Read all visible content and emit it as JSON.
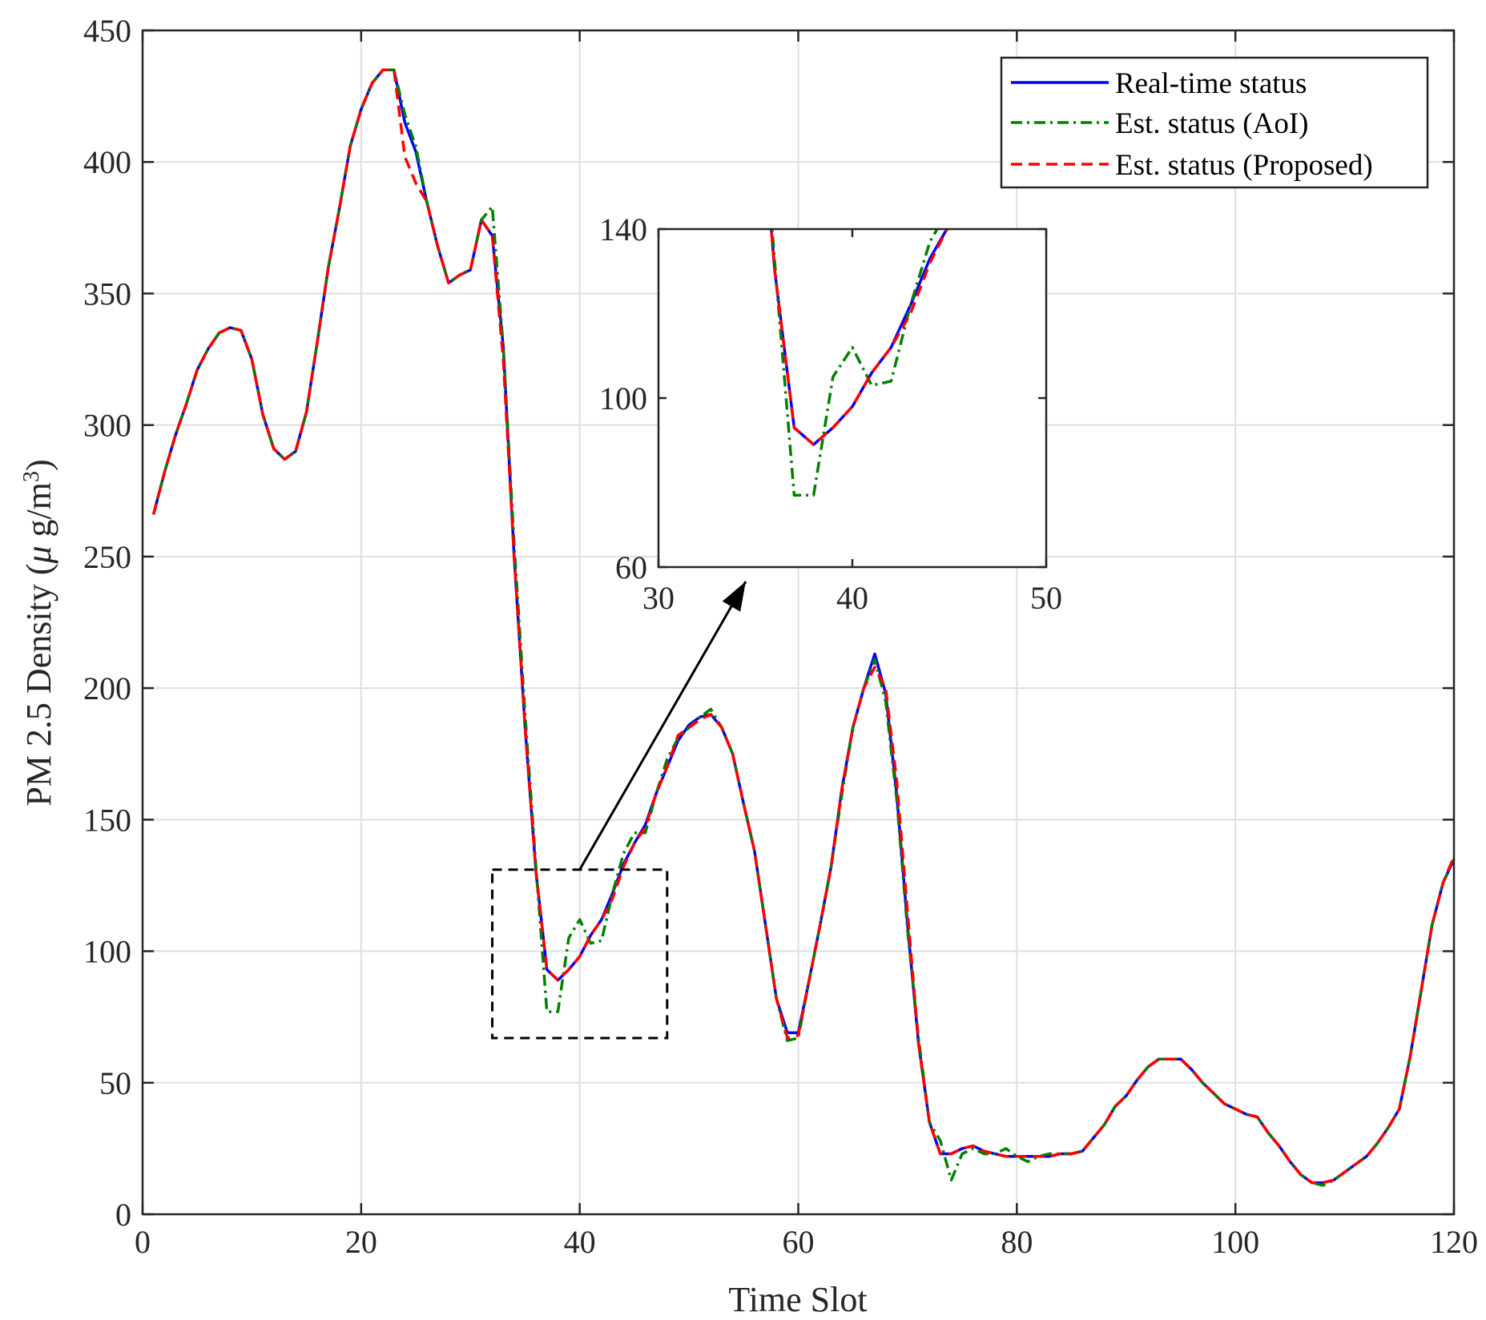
{
  "chart_data": {
    "type": "line",
    "xlabel": "Time Slot",
    "ylabel_text": "PM 2.5 Density (",
    "ylabel_mu": "μ",
    "ylabel_unit": " g/m",
    "ylabel_sup": "3",
    "ylabel_close": ")",
    "xlim": [
      0,
      120
    ],
    "ylim": [
      0,
      450
    ],
    "xticks": [
      0,
      20,
      40,
      60,
      80,
      100,
      120
    ],
    "yticks": [
      0,
      50,
      100,
      150,
      200,
      250,
      300,
      350,
      400,
      450
    ],
    "grid": true,
    "legend_position": "top-right",
    "series": [
      {
        "name": "Real-time status",
        "color": "#0000ff",
        "style": "solid",
        "x": [
          1,
          2,
          3,
          4,
          5,
          6,
          7,
          8,
          9,
          10,
          11,
          12,
          13,
          14,
          15,
          16,
          17,
          18,
          19,
          20,
          21,
          22,
          23,
          24,
          25,
          26,
          27,
          28,
          29,
          30,
          31,
          32,
          33,
          34,
          35,
          36,
          37,
          38,
          39,
          40,
          41,
          42,
          43,
          44,
          45,
          46,
          47,
          48,
          49,
          50,
          51,
          52,
          53,
          54,
          55,
          56,
          57,
          58,
          59,
          60,
          61,
          62,
          63,
          64,
          65,
          66,
          67,
          68,
          69,
          70,
          71,
          72,
          73,
          74,
          75,
          76,
          77,
          78,
          79,
          80,
          81,
          82,
          83,
          84,
          85,
          86,
          87,
          88,
          89,
          90,
          91,
          92,
          93,
          94,
          95,
          96,
          97,
          98,
          99,
          100,
          101,
          102,
          103,
          104,
          105,
          106,
          107,
          108,
          109,
          110,
          111,
          112,
          113,
          114,
          115,
          116,
          117,
          118,
          119,
          120
        ],
        "y": [
          266,
          282,
          296,
          308,
          321,
          329,
          335,
          337,
          336,
          325,
          304,
          291,
          287,
          290,
          305,
          332,
          360,
          382,
          406,
          420,
          430,
          435,
          435,
          415,
          404,
          385,
          368,
          354,
          357,
          359,
          378,
          372,
          330,
          250,
          185,
          130,
          93,
          89,
          93,
          98,
          106,
          112,
          122,
          133,
          141,
          148,
          160,
          170,
          180,
          186,
          189,
          190,
          185,
          175,
          156,
          138,
          110,
          82,
          69,
          69,
          89,
          110,
          132,
          162,
          185,
          200,
          213,
          198,
          160,
          110,
          65,
          35,
          23,
          23,
          25,
          26,
          24,
          23,
          22,
          22,
          22,
          22,
          22,
          23,
          23,
          24,
          29,
          34,
          41,
          45,
          51,
          56,
          59,
          59,
          59,
          55,
          50,
          46,
          42,
          40,
          38,
          37,
          31,
          26,
          20,
          15,
          12,
          12,
          13,
          16,
          19,
          22,
          27,
          33,
          40,
          60,
          85,
          110,
          126,
          135
        ]
      },
      {
        "name": "Est. status (AoI)",
        "color": "#008000",
        "style": "dashdot",
        "x": [
          1,
          2,
          3,
          4,
          5,
          6,
          7,
          8,
          9,
          10,
          11,
          12,
          13,
          14,
          15,
          16,
          17,
          18,
          19,
          20,
          21,
          22,
          23,
          24,
          25,
          26,
          27,
          28,
          29,
          30,
          31,
          32,
          33,
          34,
          35,
          36,
          37,
          38,
          39,
          40,
          41,
          42,
          43,
          44,
          45,
          46,
          47,
          48,
          49,
          50,
          51,
          52,
          53,
          54,
          55,
          56,
          57,
          58,
          59,
          60,
          61,
          62,
          63,
          64,
          65,
          66,
          67,
          68,
          69,
          70,
          71,
          72,
          73,
          74,
          75,
          76,
          77,
          78,
          79,
          80,
          81,
          82,
          83,
          84,
          85,
          86,
          87,
          88,
          89,
          90,
          91,
          92,
          93,
          94,
          95,
          96,
          97,
          98,
          99,
          100,
          101,
          102,
          103,
          104,
          105,
          106,
          107,
          108,
          109,
          110,
          111,
          112,
          113,
          114,
          115,
          116,
          117,
          118,
          119,
          120
        ],
        "y": [
          266,
          282,
          296,
          308,
          321,
          329,
          335,
          337,
          336,
          325,
          304,
          291,
          287,
          290,
          305,
          332,
          360,
          382,
          406,
          420,
          430,
          435,
          435,
          418,
          406,
          385,
          368,
          354,
          357,
          359,
          378,
          383,
          330,
          255,
          190,
          132,
          77,
          77,
          105,
          112,
          103,
          104,
          122,
          137,
          145,
          145,
          160,
          173,
          181,
          185,
          189,
          192,
          185,
          175,
          156,
          138,
          110,
          82,
          66,
          67,
          89,
          110,
          132,
          160,
          185,
          200,
          211,
          195,
          158,
          108,
          67,
          35,
          28,
          13,
          23,
          25,
          23,
          23,
          25,
          22,
          20,
          22,
          23,
          23,
          23,
          24,
          29,
          34,
          41,
          45,
          51,
          56,
          59,
          59,
          59,
          55,
          50,
          46,
          42,
          40,
          38,
          37,
          31,
          26,
          20,
          15,
          12,
          11,
          13,
          16,
          19,
          22,
          27,
          33,
          40,
          60,
          85,
          110,
          126,
          135
        ]
      },
      {
        "name": "Est. status (Proposed)",
        "color": "#ff0000",
        "style": "dashed",
        "x": [
          1,
          2,
          3,
          4,
          5,
          6,
          7,
          8,
          9,
          10,
          11,
          12,
          13,
          14,
          15,
          16,
          17,
          18,
          19,
          20,
          21,
          22,
          23,
          24,
          25,
          26,
          27,
          28,
          29,
          30,
          31,
          32,
          33,
          34,
          35,
          36,
          37,
          38,
          39,
          40,
          41,
          42,
          43,
          44,
          45,
          46,
          47,
          48,
          49,
          50,
          51,
          52,
          53,
          54,
          55,
          56,
          57,
          58,
          59,
          60,
          61,
          62,
          63,
          64,
          65,
          66,
          67,
          68,
          69,
          70,
          71,
          72,
          73,
          74,
          75,
          76,
          77,
          78,
          79,
          80,
          81,
          82,
          83,
          84,
          85,
          86,
          87,
          88,
          89,
          90,
          91,
          92,
          93,
          94,
          95,
          96,
          97,
          98,
          99,
          100,
          101,
          102,
          103,
          104,
          105,
          106,
          107,
          108,
          109,
          110,
          111,
          112,
          113,
          114,
          115,
          116,
          117,
          118,
          119,
          120
        ],
        "y": [
          266,
          282,
          296,
          308,
          321,
          329,
          335,
          337,
          336,
          325,
          304,
          291,
          287,
          290,
          305,
          332,
          360,
          382,
          406,
          420,
          430,
          435,
          435,
          402,
          392,
          385,
          368,
          354,
          357,
          359,
          378,
          372,
          325,
          250,
          185,
          130,
          93,
          89,
          93,
          98,
          106,
          112,
          120,
          132,
          141,
          147,
          160,
          170,
          182,
          185,
          188,
          190,
          185,
          175,
          156,
          138,
          110,
          82,
          67,
          68,
          89,
          110,
          132,
          162,
          185,
          200,
          208,
          200,
          165,
          115,
          65,
          35,
          23,
          23,
          25,
          26,
          24,
          23,
          22,
          22,
          22,
          22,
          22,
          23,
          23,
          24,
          29,
          34,
          41,
          45,
          51,
          56,
          59,
          59,
          59,
          55,
          50,
          46,
          42,
          40,
          38,
          37,
          31,
          26,
          20,
          15,
          12,
          12,
          13,
          16,
          19,
          22,
          27,
          33,
          40,
          60,
          85,
          110,
          126,
          136
        ]
      }
    ],
    "inset": {
      "xlim": [
        30,
        50
      ],
      "ylim": [
        60,
        140
      ],
      "xticks": [
        30,
        40,
        50
      ],
      "yticks": [
        60,
        100,
        140
      ],
      "highlight_region": {
        "x": [
          32,
          48
        ],
        "y": [
          67,
          131
        ]
      }
    }
  }
}
